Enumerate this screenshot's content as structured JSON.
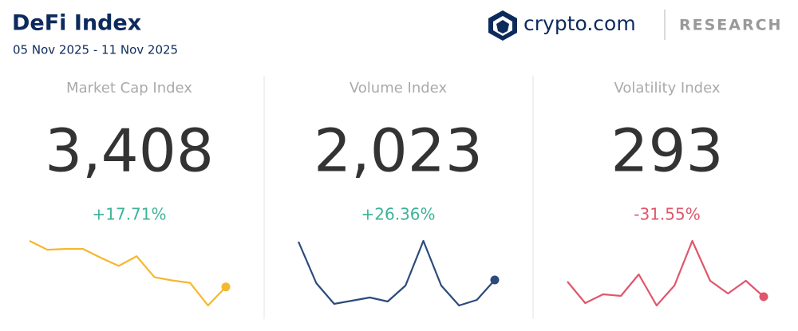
{
  "header": {
    "title": "DeFi Index",
    "subtitle": "05 Nov 2025 - 11 Nov 2025",
    "brand": "crypto.com",
    "section": "RESEARCH"
  },
  "chart_data": [
    {
      "type": "line",
      "title": "Market Cap Index",
      "value": {
        "value": 3408,
        "label": "3,408"
      },
      "change": {
        "value": 17.71,
        "label": "+17.71%"
      },
      "change_color": "#3db39a",
      "color": "#f5b82e",
      "values": [
        98,
        87,
        88,
        88,
        77,
        67,
        79,
        53,
        49,
        46,
        18,
        41
      ]
    },
    {
      "type": "line",
      "title": "Volume Index",
      "value": {
        "value": 2023,
        "label": "2,023"
      },
      "change": {
        "value": 26.36,
        "label": "+26.36%"
      },
      "change_color": "#3db39a",
      "color": "#2c4a7c",
      "values": [
        97,
        45,
        19,
        23,
        27,
        22,
        42,
        98,
        42,
        17,
        24,
        49
      ]
    },
    {
      "type": "line",
      "title": "Volatility Index",
      "value": {
        "value": 293,
        "label": "293"
      },
      "change": {
        "value": -31.55,
        "label": "-31.55%"
      },
      "change_color": "#e0566b",
      "color": "#e0566b",
      "values": [
        47,
        20,
        31,
        29,
        56,
        17,
        42,
        98,
        48,
        32,
        48,
        28
      ]
    }
  ]
}
